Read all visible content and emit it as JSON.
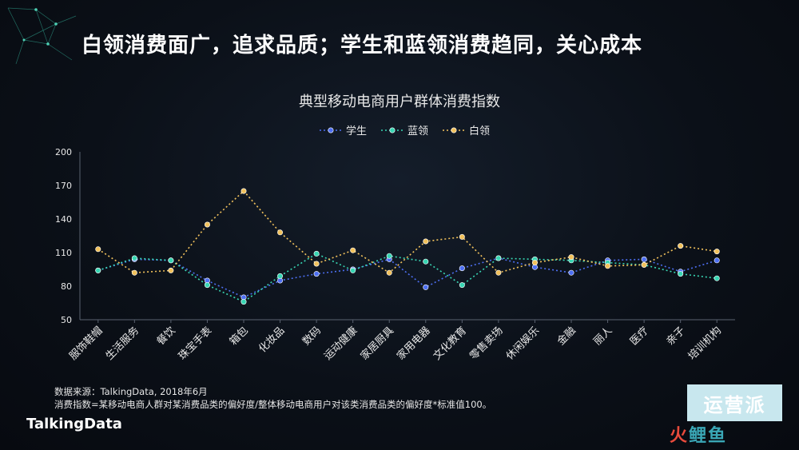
{
  "headline": "白领消费面广，追求品质；学生和蓝领消费趋同，关心成本",
  "source_line": "数据来源：TalkingData, 2018年6月",
  "definition_line": "消费指数=某移动电商人群对某消费品类的偏好度/整体移动电商用户对该类消费品类的偏好度*标准值100。",
  "brand": "TalkingData",
  "watermark": {
    "top": "运营派",
    "bottom_prefix": "火",
    "bottom_rest": "鲤鱼"
  },
  "colors": {
    "student": "#4d6ff2",
    "bluecollar": "#38d6b3",
    "whitecollar": "#f2c25c",
    "grid": "#3a4250",
    "text": "#e8e8e8"
  },
  "chart_data": {
    "type": "line",
    "title": "典型移动电商用户群体消费指数",
    "xlabel": "",
    "ylabel": "",
    "ylim": [
      50,
      200
    ],
    "yticks": [
      50,
      80,
      110,
      140,
      170,
      200
    ],
    "grid": false,
    "legend_position": "top-center",
    "categories": [
      "服饰鞋帽",
      "生活服务",
      "餐饮",
      "珠宝手表",
      "箱包",
      "化妆品",
      "数码",
      "运动健康",
      "家居厨具",
      "家用电器",
      "文化教育",
      "零售卖场",
      "休闲娱乐",
      "金融",
      "丽人",
      "医疗",
      "亲子",
      "培训机构"
    ],
    "series": [
      {
        "name": "学生",
        "color_key": "student",
        "values": [
          94,
          104,
          103,
          85,
          70,
          85,
          91,
          95,
          104,
          79,
          96,
          105,
          97,
          92,
          103,
          104,
          93,
          103
        ]
      },
      {
        "name": "蓝领",
        "color_key": "bluecollar",
        "values": [
          94,
          105,
          103,
          81,
          66,
          89,
          109,
          94,
          107,
          102,
          81,
          105,
          104,
          103,
          101,
          99,
          91,
          87
        ]
      },
      {
        "name": "白领",
        "color_key": "whitecollar",
        "values": [
          113,
          92,
          94,
          135,
          165,
          128,
          100,
          112,
          92,
          120,
          124,
          92,
          101,
          106,
          98,
          99,
          116,
          111
        ]
      }
    ]
  }
}
